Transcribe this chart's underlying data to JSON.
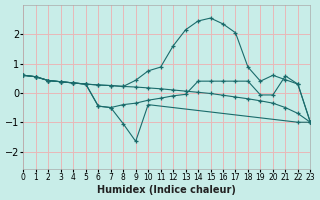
{
  "xlabel": "Humidex (Indice chaleur)",
  "bg_color": "#c8ede8",
  "grid_color": "#e8b8b8",
  "line_color": "#1a6b6b",
  "xlim": [
    0,
    23
  ],
  "ylim": [
    -2.6,
    3.0
  ],
  "yticks": [
    -2,
    -1,
    0,
    1,
    2
  ],
  "xticks": [
    0,
    1,
    2,
    3,
    4,
    5,
    6,
    7,
    8,
    9,
    10,
    11,
    12,
    13,
    14,
    15,
    16,
    17,
    18,
    19,
    20,
    21,
    22,
    23
  ],
  "series": [
    {
      "x": [
        0,
        1,
        2,
        3,
        4,
        5,
        6,
        7,
        8,
        9,
        10,
        11,
        12,
        13,
        14,
        15,
        16,
        17,
        18,
        19,
        20,
        21,
        22,
        23
      ],
      "y": [
        0.6,
        0.55,
        0.42,
        0.38,
        0.34,
        0.3,
        0.27,
        0.25,
        0.22,
        0.2,
        0.17,
        0.14,
        0.1,
        0.06,
        0.02,
        -0.02,
        -0.08,
        -0.14,
        -0.2,
        -0.27,
        -0.35,
        -0.5,
        -0.7,
        -1.0
      ]
    },
    {
      "x": [
        0,
        1,
        2,
        3,
        4,
        5,
        6,
        7,
        8,
        9,
        10,
        11,
        12,
        13,
        14,
        15,
        16,
        17,
        18,
        19,
        20,
        21,
        22,
        23
      ],
      "y": [
        0.6,
        0.55,
        0.42,
        0.38,
        0.34,
        0.3,
        0.27,
        0.25,
        0.22,
        0.43,
        0.75,
        0.88,
        1.6,
        2.15,
        2.45,
        2.55,
        2.35,
        2.05,
        0.88,
        0.4,
        0.6,
        0.45,
        0.3,
        -1.0
      ]
    },
    {
      "x": [
        0,
        1,
        2,
        3,
        4,
        5,
        6,
        7,
        8,
        9,
        10,
        22,
        23
      ],
      "y": [
        0.6,
        0.55,
        0.42,
        0.38,
        0.34,
        0.3,
        -0.45,
        -0.5,
        -1.05,
        -1.65,
        -0.4,
        -1.0,
        -1.0
      ]
    },
    {
      "x": [
        0,
        1,
        2,
        3,
        4,
        5,
        6,
        7,
        8,
        9,
        10,
        11,
        12,
        13,
        14,
        15,
        16,
        17,
        18,
        19,
        20,
        21,
        22,
        23
      ],
      "y": [
        0.6,
        0.55,
        0.42,
        0.38,
        0.34,
        0.3,
        -0.45,
        -0.5,
        -0.4,
        -0.35,
        -0.25,
        -0.18,
        -0.1,
        -0.05,
        0.4,
        0.4,
        0.4,
        0.4,
        0.4,
        -0.07,
        -0.07,
        0.58,
        0.3,
        -1.0
      ]
    }
  ]
}
